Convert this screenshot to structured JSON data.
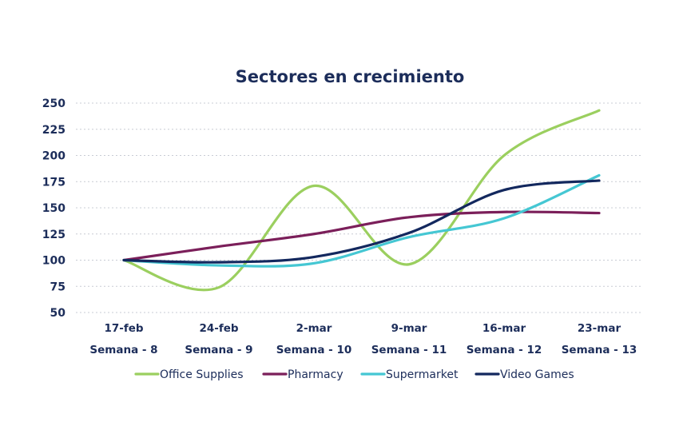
{
  "chart_data": {
    "type": "line",
    "title": "Sectores en crecimiento",
    "xlabel": "",
    "ylabel": "",
    "categories": [
      [
        "17-feb",
        "Semana - 8"
      ],
      [
        "24-feb",
        "Semana - 9"
      ],
      [
        "2-mar",
        "Semana - 10"
      ],
      [
        "9-mar",
        "Semana - 11"
      ],
      [
        "16-mar",
        "Semana - 12"
      ],
      [
        "23-mar",
        "Semana - 13"
      ]
    ],
    "yticks": [
      "250",
      "225",
      "200",
      "175",
      "150",
      "125",
      "100",
      "75",
      "50"
    ],
    "ylim": [
      50,
      250
    ],
    "grid": true,
    "legend_position": "bottom",
    "series": [
      {
        "name": "Office Supplies",
        "color": "#9bcf5f",
        "values": [
          100,
          74,
          171,
          96,
          200,
          243
        ]
      },
      {
        "name": "Pharmacy",
        "color": "#7b1f5a",
        "values": [
          100,
          113,
          125,
          141,
          146,
          145
        ]
      },
      {
        "name": "Supermarket",
        "color": "#45c7d3",
        "values": [
          100,
          95,
          97,
          122,
          140,
          181
        ]
      },
      {
        "name": "Video Games",
        "color": "#13285e",
        "values": [
          100,
          98,
          103,
          126,
          167,
          176
        ]
      }
    ]
  }
}
